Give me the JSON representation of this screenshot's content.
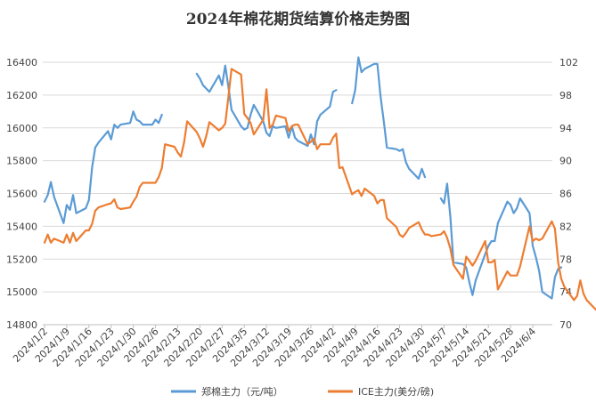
{
  "chart_data": {
    "type": "line",
    "title": "2024年棉花期货结算价格走势图",
    "y_left_range": [
      14800,
      16400
    ],
    "y_left_ticks": [
      "14800",
      "15000",
      "15200",
      "15400",
      "15600",
      "15800",
      "16000",
      "16200",
      "16400"
    ],
    "y_right_range": [
      70,
      102
    ],
    "y_right_ticks": [
      "70",
      "74",
      "78",
      "82",
      "86",
      "90",
      "94",
      "98",
      "102"
    ],
    "x_tick_labels": [
      "2024/1/2",
      "2024/1/9",
      "2024/1/16",
      "2024/1/23",
      "2024/1/30",
      "2024/2/6",
      "2024/2/13",
      "2024/2/20",
      "2024/2/27",
      "2024/3/5",
      "2024/3/12",
      "2024/3/19",
      "2024/3/26",
      "2024/4/2",
      "2024/4/9",
      "2024/4/16",
      "2024/4/23",
      "2024/4/30",
      "2024/5/7",
      "2024/5/14",
      "2024/5/21",
      "2024/5/28",
      "2024/6/4"
    ],
    "grid": "horizontal",
    "legend_position": "bottom",
    "series": [
      {
        "name": "郑棉主力（元/吨）",
        "axis": "left",
        "color": "#5B9BD5",
        "points": [
          [
            "2024/1/2",
            15550
          ],
          [
            "2024/1/3",
            15590
          ],
          [
            "2024/1/4",
            15670
          ],
          [
            "2024/1/5",
            15580
          ],
          [
            "2024/1/8",
            15420
          ],
          [
            "2024/1/9",
            15530
          ],
          [
            "2024/1/10",
            15500
          ],
          [
            "2024/1/11",
            15590
          ],
          [
            "2024/1/12",
            15480
          ],
          [
            "2024/1/15",
            15510
          ],
          [
            "2024/1/16",
            15560
          ],
          [
            "2024/1/17",
            15760
          ],
          [
            "2024/1/18",
            15880
          ],
          [
            "2024/1/19",
            15910
          ],
          [
            "2024/1/22",
            15980
          ],
          [
            "2024/1/23",
            15930
          ],
          [
            "2024/1/24",
            16020
          ],
          [
            "2024/1/25",
            16000
          ],
          [
            "2024/1/26",
            16020
          ],
          [
            "2024/1/29",
            16030
          ],
          [
            "2024/1/30",
            16100
          ],
          [
            "2024/1/31",
            16050
          ],
          [
            "2024/2/1",
            16040
          ],
          [
            "2024/2/2",
            16020
          ],
          [
            "2024/2/5",
            16020
          ],
          [
            "2024/2/6",
            16050
          ],
          [
            "2024/2/7",
            16030
          ],
          [
            "2024/2/8",
            16080
          ],
          [
            null,
            null
          ],
          [
            "2024/2/19",
            16330
          ],
          [
            "2024/2/20",
            16300
          ],
          [
            "2024/2/21",
            16260
          ],
          [
            "2024/2/22",
            16240
          ],
          [
            "2024/2/23",
            16220
          ],
          [
            "2024/2/26",
            16320
          ],
          [
            "2024/2/27",
            16260
          ],
          [
            "2024/2/28",
            16380
          ],
          [
            "2024/2/29",
            16250
          ],
          [
            "2024/3/1",
            16110
          ],
          [
            "2024/3/4",
            16010
          ],
          [
            "2024/3/5",
            15990
          ],
          [
            "2024/3/6",
            16000
          ],
          [
            "2024/3/7",
            16080
          ],
          [
            "2024/3/8",
            16140
          ],
          [
            "2024/3/11",
            16040
          ],
          [
            "2024/3/12",
            15970
          ],
          [
            "2024/3/13",
            15950
          ],
          [
            "2024/3/14",
            16010
          ],
          [
            "2024/3/15",
            16000
          ],
          [
            "2024/3/18",
            16010
          ],
          [
            "2024/3/19",
            15940
          ],
          [
            "2024/3/20",
            16010
          ],
          [
            "2024/3/21",
            15940
          ],
          [
            "2024/3/22",
            15920
          ],
          [
            "2024/3/25",
            15890
          ],
          [
            "2024/3/26",
            15960
          ],
          [
            "2024/3/27",
            15900
          ],
          [
            "2024/3/28",
            16040
          ],
          [
            "2024/3/29",
            16080
          ],
          [
            "2024/4/1",
            16130
          ],
          [
            "2024/4/2",
            16220
          ],
          [
            "2024/4/3",
            16230
          ],
          [
            null,
            null
          ],
          [
            "2024/4/8",
            16150
          ],
          [
            "2024/4/9",
            16230
          ],
          [
            "2024/4/10",
            16430
          ],
          [
            "2024/4/11",
            16340
          ],
          [
            "2024/4/12",
            16360
          ],
          [
            "2024/4/15",
            16390
          ],
          [
            "2024/4/16",
            16390
          ],
          [
            "2024/4/17",
            16190
          ],
          [
            "2024/4/18",
            16040
          ],
          [
            "2024/4/19",
            15880
          ],
          [
            "2024/4/22",
            15870
          ],
          [
            "2024/4/23",
            15860
          ],
          [
            "2024/4/24",
            15870
          ],
          [
            "2024/4/25",
            15790
          ],
          [
            "2024/4/26",
            15750
          ],
          [
            "2024/4/29",
            15690
          ],
          [
            "2024/4/30",
            15750
          ],
          [
            "2024/5/1",
            15700
          ],
          [
            null,
            null
          ],
          [
            "2024/5/6",
            15570
          ],
          [
            "2024/5/7",
            15540
          ],
          [
            "2024/5/8",
            15660
          ],
          [
            "2024/5/9",
            15460
          ],
          [
            "2024/5/10",
            15180
          ],
          [
            "2024/5/13",
            15170
          ],
          [
            "2024/5/14",
            15150
          ],
          [
            "2024/5/15",
            15060
          ],
          [
            "2024/5/16",
            14980
          ],
          [
            "2024/5/17",
            15070
          ],
          [
            "2024/5/20",
            15230
          ],
          [
            "2024/5/21",
            15280
          ],
          [
            "2024/5/22",
            15310
          ],
          [
            "2024/5/23",
            15310
          ],
          [
            "2024/5/24",
            15420
          ],
          [
            "2024/5/27",
            15550
          ],
          [
            "2024/5/28",
            15530
          ],
          [
            "2024/5/29",
            15480
          ],
          [
            "2024/5/30",
            15510
          ],
          [
            "2024/5/31",
            15570
          ],
          [
            "2024/6/3",
            15480
          ],
          [
            "2024/6/4",
            15280
          ],
          [
            "2024/6/5",
            15210
          ],
          [
            "2024/6/6",
            15130
          ],
          [
            "2024/6/7",
            15000
          ],
          [
            "2024/6/10",
            14960
          ],
          [
            "2024/6/11",
            15090
          ],
          [
            "2024/6/12",
            15140
          ],
          [
            "2024/6/13",
            15150
          ]
        ]
      },
      {
        "name": "ICE主力(美分/磅)",
        "axis": "right",
        "color": "#ED7D31",
        "points": [
          [
            "2024/1/2",
            80.0
          ],
          [
            "2024/1/3",
            81.0
          ],
          [
            "2024/1/4",
            80.0
          ],
          [
            "2024/1/5",
            80.5
          ],
          [
            "2024/1/8",
            80.0
          ],
          [
            "2024/1/9",
            81.0
          ],
          [
            "2024/1/10",
            80.0
          ],
          [
            "2024/1/11",
            81.2
          ],
          [
            "2024/1/12",
            80.2
          ],
          [
            "2024/1/15",
            81.5
          ],
          [
            "2024/1/16",
            81.5
          ],
          [
            "2024/1/17",
            82.3
          ],
          [
            "2024/1/18",
            83.9
          ],
          [
            "2024/1/19",
            84.3
          ],
          [
            "2024/1/22",
            84.7
          ],
          [
            "2024/1/23",
            84.8
          ],
          [
            "2024/1/24",
            85.3
          ],
          [
            "2024/1/25",
            84.3
          ],
          [
            "2024/1/26",
            84.1
          ],
          [
            "2024/1/29",
            84.3
          ],
          [
            "2024/1/30",
            85.0
          ],
          [
            "2024/1/31",
            85.6
          ],
          [
            "2024/2/1",
            86.8
          ],
          [
            "2024/2/2",
            87.3
          ],
          [
            "2024/2/5",
            87.3
          ],
          [
            "2024/2/6",
            87.3
          ],
          [
            "2024/2/7",
            88.0
          ],
          [
            "2024/2/8",
            89.1
          ],
          [
            "2024/2/9",
            92.0
          ],
          [
            "2024/2/12",
            91.7
          ],
          [
            "2024/2/13",
            91.0
          ],
          [
            "2024/2/14",
            90.5
          ],
          [
            "2024/2/15",
            92.2
          ],
          [
            "2024/2/16",
            94.8
          ],
          [
            "2024/2/19",
            93.5
          ],
          [
            "2024/2/20",
            92.7
          ],
          [
            "2024/2/21",
            91.7
          ],
          [
            "2024/2/22",
            93.0
          ],
          [
            "2024/2/23",
            94.7
          ],
          [
            "2024/2/26",
            93.7
          ],
          [
            "2024/2/27",
            94.0
          ],
          [
            "2024/2/28",
            94.5
          ],
          [
            "2024/2/29",
            97.8
          ],
          [
            "2024/3/1",
            101.2
          ],
          [
            "2024/3/4",
            100.5
          ],
          [
            "2024/3/5",
            95.7
          ],
          [
            "2024/3/6",
            95.2
          ],
          [
            "2024/3/7",
            94.6
          ],
          [
            "2024/3/8",
            93.2
          ],
          [
            "2024/3/11",
            95.0
          ],
          [
            "2024/3/12",
            98.7
          ],
          [
            "2024/3/13",
            94.0
          ],
          [
            "2024/3/14",
            94.4
          ],
          [
            "2024/3/15",
            95.5
          ],
          [
            "2024/3/18",
            95.2
          ],
          [
            "2024/3/19",
            93.6
          ],
          [
            "2024/3/20",
            94.2
          ],
          [
            "2024/3/21",
            94.4
          ],
          [
            "2024/3/22",
            94.4
          ],
          [
            "2024/3/25",
            92.0
          ],
          [
            "2024/3/26",
            92.3
          ],
          [
            "2024/3/27",
            92.7
          ],
          [
            "2024/3/28",
            91.4
          ],
          [
            "2024/3/29",
            92.0
          ],
          [
            "2024/4/1",
            92.0
          ],
          [
            "2024/4/2",
            92.8
          ],
          [
            "2024/4/3",
            93.3
          ],
          [
            "2024/4/4",
            89.1
          ],
          [
            "2024/4/5",
            89.2
          ],
          [
            "2024/4/8",
            85.9
          ],
          [
            "2024/4/9",
            86.2
          ],
          [
            "2024/4/10",
            86.4
          ],
          [
            "2024/4/11",
            85.7
          ],
          [
            "2024/4/12",
            86.6
          ],
          [
            "2024/4/15",
            85.7
          ],
          [
            "2024/4/16",
            84.8
          ],
          [
            "2024/4/17",
            85.2
          ],
          [
            "2024/4/18",
            85.2
          ],
          [
            "2024/4/19",
            83.0
          ],
          [
            "2024/4/22",
            81.9
          ],
          [
            "2024/4/23",
            81.0
          ],
          [
            "2024/4/24",
            80.7
          ],
          [
            "2024/4/25",
            81.2
          ],
          [
            "2024/4/26",
            81.8
          ],
          [
            "2024/4/29",
            82.5
          ],
          [
            "2024/4/30",
            81.6
          ],
          [
            "2024/5/1",
            81.0
          ],
          [
            "2024/5/2",
            81.0
          ],
          [
            "2024/5/3",
            80.8
          ],
          [
            "2024/5/6",
            81.0
          ],
          [
            "2024/5/7",
            81.4
          ],
          [
            "2024/5/8",
            80.6
          ],
          [
            "2024/5/9",
            79.3
          ],
          [
            "2024/5/10",
            77.3
          ],
          [
            "2024/5/13",
            75.6
          ],
          [
            "2024/5/14",
            78.3
          ],
          [
            "2024/5/15",
            77.8
          ],
          [
            "2024/5/16",
            77.2
          ],
          [
            "2024/5/17",
            77.8
          ],
          [
            "2024/5/20",
            80.2
          ],
          [
            "2024/5/21",
            77.6
          ],
          [
            "2024/5/22",
            77.6
          ],
          [
            "2024/5/23",
            77.9
          ],
          [
            "2024/5/24",
            74.3
          ],
          [
            "2024/5/27",
            76.5
          ],
          [
            "2024/5/28",
            76.0
          ],
          [
            "2024/5/29",
            76.0
          ],
          [
            "2024/5/30",
            76.0
          ],
          [
            "2024/5/31",
            77.1
          ],
          [
            "2024/6/3",
            82.0
          ],
          [
            "2024/6/4",
            80.2
          ],
          [
            "2024/6/5",
            80.5
          ],
          [
            "2024/6/6",
            80.3
          ],
          [
            "2024/6/7",
            80.5
          ],
          [
            "2024/6/10",
            82.6
          ],
          [
            "2024/6/11",
            81.7
          ],
          [
            "2024/6/12",
            77.6
          ],
          [
            "2024/6/13",
            75.6
          ],
          [
            "2024/6/14",
            74.6
          ],
          [
            "2024/6/17",
            73.0
          ],
          [
            "2024/6/18",
            73.5
          ],
          [
            "2024/6/19",
            75.4
          ],
          [
            "2024/6/20",
            73.8
          ],
          [
            "2024/6/21",
            73.0
          ],
          [
            "2024/6/24",
            71.8
          ]
        ]
      }
    ]
  }
}
